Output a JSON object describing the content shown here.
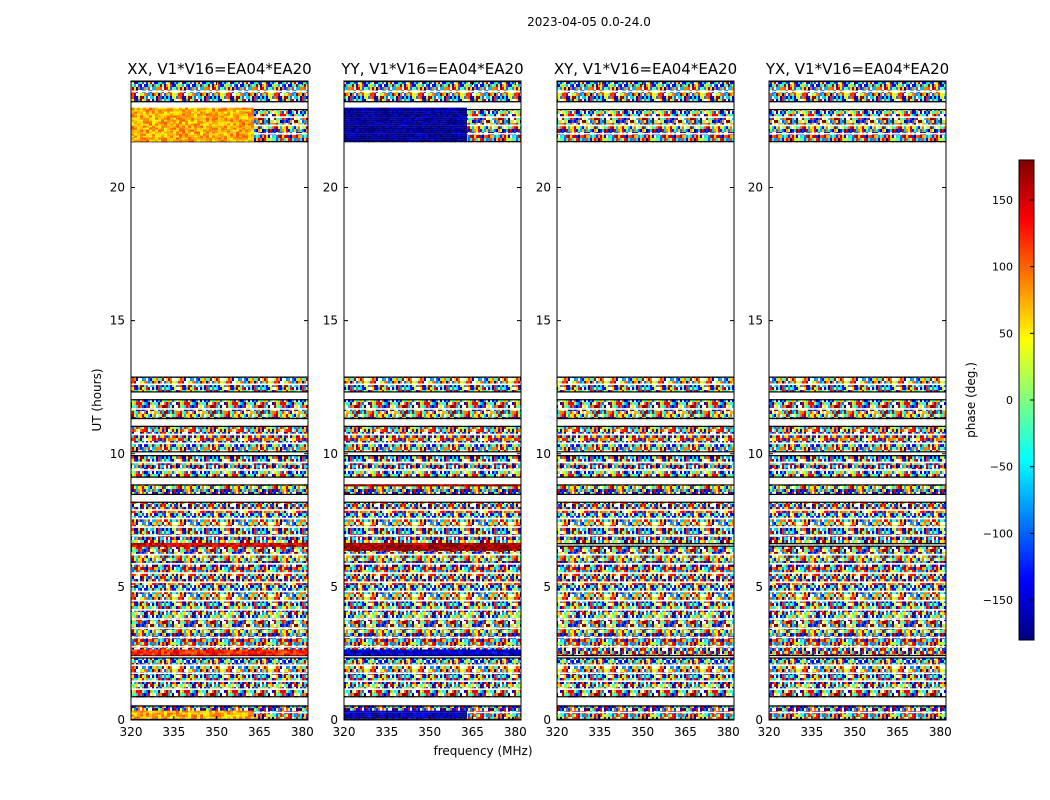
{
  "chart_data": {
    "type": "heatmap",
    "title": "2023-04-05 0.0-24.0",
    "xlabel": "frequency (MHz)",
    "ylabel": "UT (hours)",
    "colorbar_label": "phase (deg.)",
    "xlim": [
      320,
      382
    ],
    "ylim": [
      0,
      24
    ],
    "xticks": [
      320,
      335,
      350,
      365,
      380
    ],
    "yticks": [
      0,
      5,
      10,
      15,
      20
    ],
    "colorbar_range": [
      -180,
      180
    ],
    "colorbar_ticks": [
      150,
      100,
      50,
      0,
      -50,
      -100,
      -150
    ],
    "colormap": "jet",
    "colormap_stops": [
      "#00007f",
      "#0000ff",
      "#007fff",
      "#00ffff",
      "#7fff7f",
      "#ffff00",
      "#ff7f00",
      "#ff0000",
      "#7f0000"
    ],
    "time_blocks_ut": [
      [
        0.0,
        0.55
      ],
      [
        0.85,
        2.35
      ],
      [
        2.4,
        6.55
      ],
      [
        6.6,
        8.2
      ],
      [
        8.45,
        8.85
      ],
      [
        9.1,
        9.95
      ],
      [
        10.05,
        11.05
      ],
      [
        11.3,
        12.05
      ],
      [
        12.3,
        12.9
      ],
      [
        21.7,
        22.95
      ],
      [
        23.2,
        24.0
      ]
    ],
    "panels": [
      {
        "name": "XX, V1*V16=EA04*EA20",
        "coherent_bands": [
          {
            "t0": 21.75,
            "t1": 23.0,
            "f1": 363,
            "phase": 75
          },
          {
            "t0": 2.4,
            "t1": 2.65,
            "f1": 382,
            "phase": 120
          },
          {
            "t0": 0.05,
            "t1": 0.35,
            "f1": 363,
            "phase": 75
          },
          {
            "t0": 6.5,
            "t1": 6.65,
            "f1": 382,
            "phase": 150
          }
        ]
      },
      {
        "name": "YY, V1*V16=EA04*EA20",
        "coherent_bands": [
          {
            "t0": 21.75,
            "t1": 23.0,
            "f1": 363,
            "phase": -175
          },
          {
            "t0": 2.4,
            "t1": 2.65,
            "f1": 382,
            "phase": -150
          },
          {
            "t0": 0.05,
            "t1": 0.35,
            "f1": 363,
            "phase": -160
          },
          {
            "t0": 6.35,
            "t1": 6.65,
            "f1": 382,
            "phase": 170
          },
          {
            "t0": 8.75,
            "t1": 8.85,
            "f1": 382,
            "phase": 170
          }
        ]
      },
      {
        "name": "XY, V1*V16=EA04*EA20",
        "coherent_bands": []
      },
      {
        "name": "YX, V1*V16=EA04*EA20",
        "coherent_bands": []
      }
    ]
  }
}
